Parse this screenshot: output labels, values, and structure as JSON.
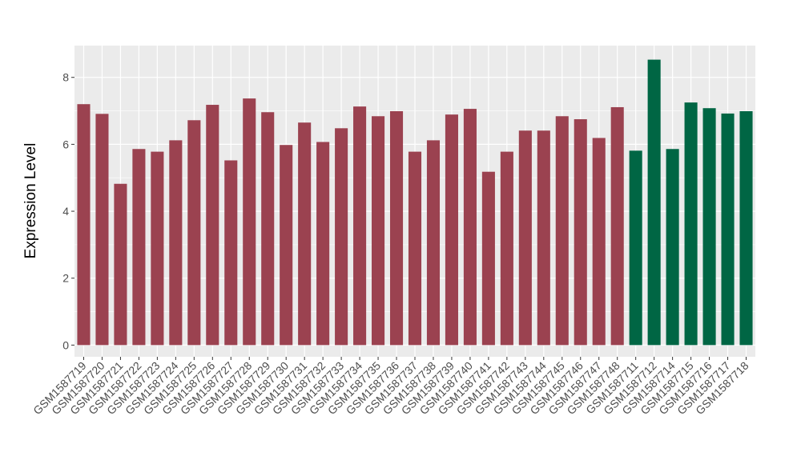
{
  "chart_data": {
    "type": "bar",
    "title": "",
    "xlabel": "",
    "ylabel": "Expression Level",
    "ylim": [
      -0.35,
      8.95
    ],
    "yticks": [
      0,
      2,
      4,
      6,
      8
    ],
    "grid": true,
    "background": "#EBEBEB",
    "categories": [
      "GSM1587719",
      "GSM1587720",
      "GSM1587721",
      "GSM1587722",
      "GSM1587723",
      "GSM1587724",
      "GSM1587725",
      "GSM1587726",
      "GSM1587727",
      "GSM1587728",
      "GSM1587729",
      "GSM1587730",
      "GSM1587731",
      "GSM1587732",
      "GSM1587733",
      "GSM1587734",
      "GSM1587735",
      "GSM1587736",
      "GSM1587737",
      "GSM1587738",
      "GSM1587739",
      "GSM1587740",
      "GSM1587741",
      "GSM1587742",
      "GSM1587743",
      "GSM1587744",
      "GSM1587745",
      "GSM1587746",
      "GSM1587747",
      "GSM1587748",
      "GSM1587711",
      "GSM1587712",
      "GSM1587714",
      "GSM1587715",
      "GSM1587716",
      "GSM1587717",
      "GSM1587718"
    ],
    "values": [
      7.2,
      6.91,
      4.82,
      5.86,
      5.78,
      6.12,
      6.72,
      7.18,
      5.52,
      7.37,
      6.96,
      5.98,
      6.65,
      6.07,
      6.48,
      7.13,
      6.84,
      6.99,
      5.78,
      6.12,
      6.89,
      7.06,
      5.18,
      5.78,
      6.41,
      6.41,
      6.84,
      6.75,
      6.19,
      7.11,
      5.81,
      8.53,
      5.86,
      7.25,
      7.08,
      6.92,
      6.99
    ],
    "groups": [
      "a",
      "a",
      "a",
      "a",
      "a",
      "a",
      "a",
      "a",
      "a",
      "a",
      "a",
      "a",
      "a",
      "a",
      "a",
      "a",
      "a",
      "a",
      "a",
      "a",
      "a",
      "a",
      "a",
      "a",
      "a",
      "a",
      "a",
      "a",
      "a",
      "a",
      "b",
      "b",
      "b",
      "b",
      "b",
      "b",
      "b"
    ],
    "colors": {
      "a": "#9B4250",
      "b": "#006644"
    }
  }
}
